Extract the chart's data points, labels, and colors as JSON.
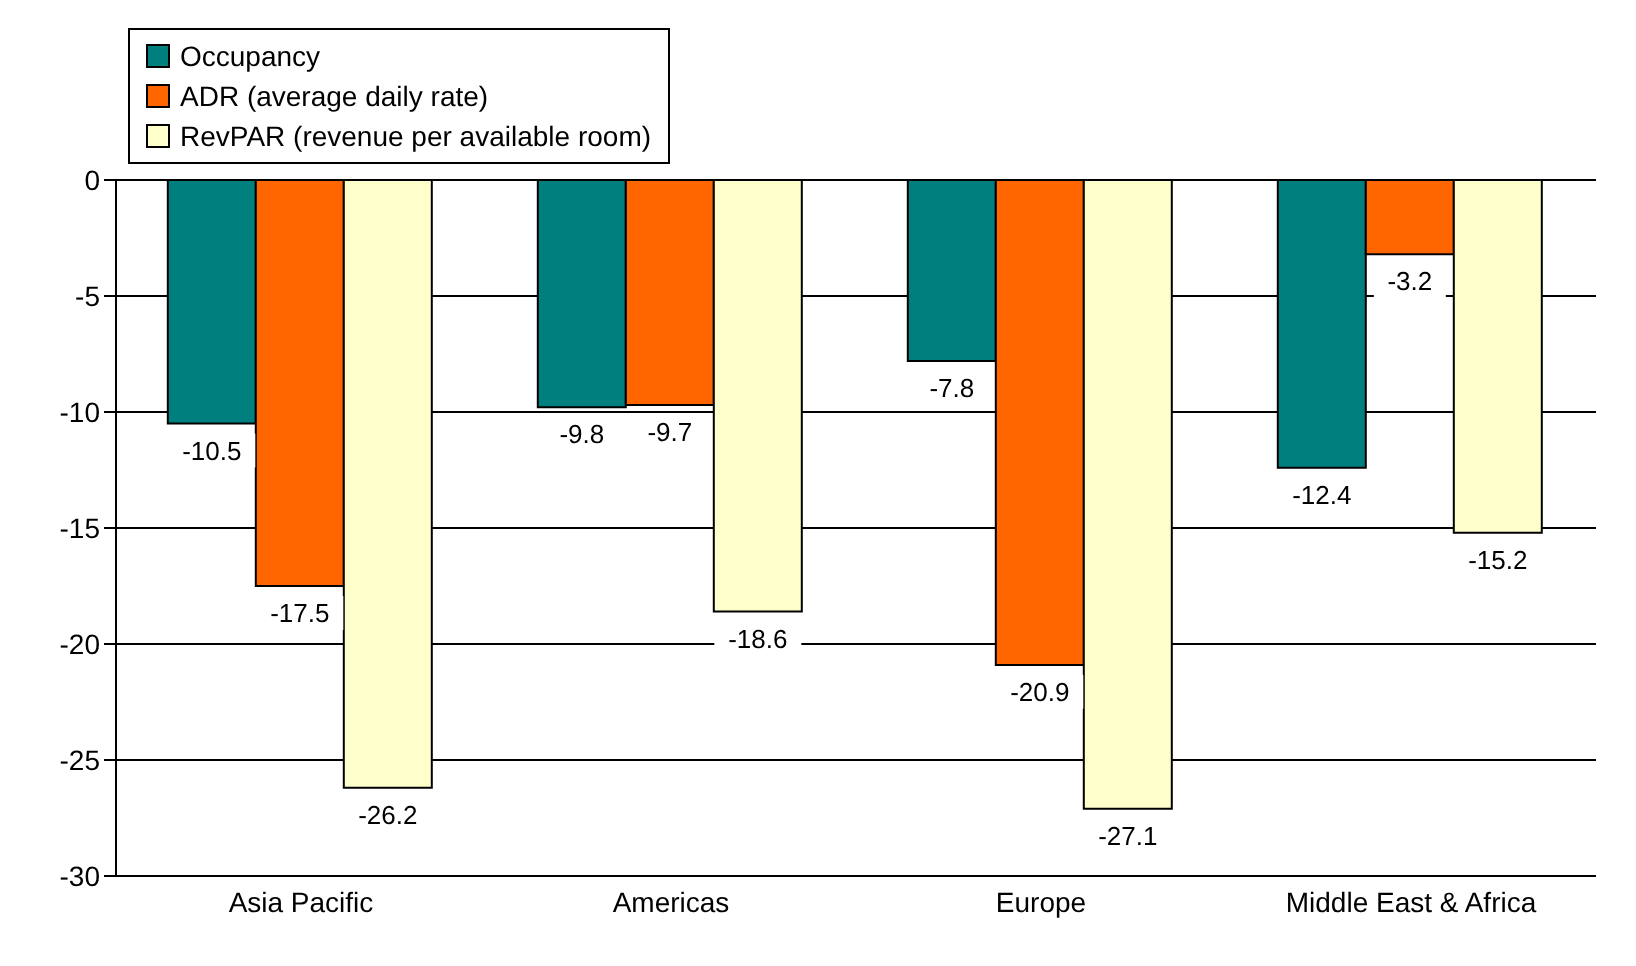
{
  "chart_data": {
    "type": "bar",
    "categories": [
      "Asia Pacific",
      "Americas",
      "Europe",
      "Middle East & Africa"
    ],
    "series": [
      {
        "name": "Occupancy",
        "color": "#007f7f",
        "values": [
          -10.5,
          -9.8,
          -7.8,
          -12.4
        ]
      },
      {
        "name": "ADR (average daily rate)",
        "color": "#ff6600",
        "values": [
          -17.5,
          -9.7,
          -20.9,
          -3.2
        ]
      },
      {
        "name": "RevPAR (revenue per available room)",
        "color": "#ffffcc",
        "values": [
          -26.2,
          -18.6,
          -27.1,
          -15.2
        ]
      }
    ],
    "ylim": [
      -30,
      0
    ],
    "yticks": [
      -30,
      -25,
      -20,
      -15,
      -10,
      -5,
      0
    ],
    "grid": "y",
    "legend": "top left",
    "data_labels": true
  }
}
